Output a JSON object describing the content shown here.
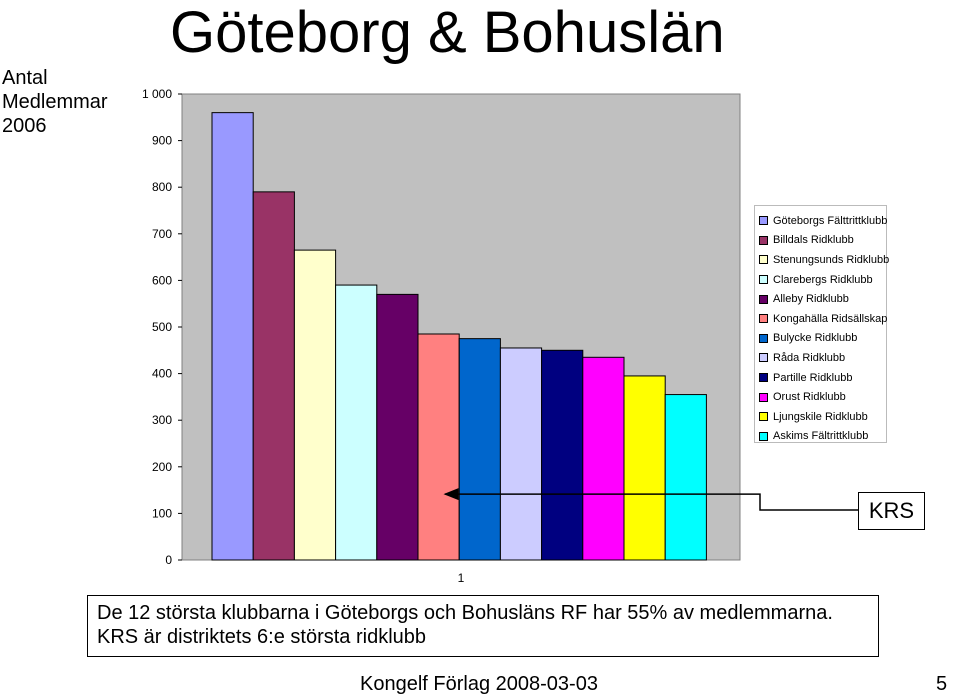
{
  "slide": {
    "title": "Göteborg & Bohuslän",
    "caption_line1": "De 12 största klubbarna i Göteborgs och Bohusläns RF har 55% av medlemmarna.",
    "caption_line2": "KRS är distriktets 6:e största ridklubb",
    "footer": "Kongelf Förlag 2008-03-03",
    "page_number": "5"
  },
  "chart_data": {
    "type": "bar",
    "ylabel_lines": [
      "Antal",
      "Medlemmar",
      "2006"
    ],
    "categories": [
      "1"
    ],
    "yticks": [
      "0",
      "100",
      "200",
      "300",
      "400",
      "500",
      "600",
      "700",
      "800",
      "900",
      "1 000"
    ],
    "ylim": [
      0,
      1000
    ],
    "grid": false,
    "plot_background": "#c0c0c0",
    "legend_position": "right",
    "annotation": {
      "text": "KRS",
      "points_to_value": 150
    },
    "series": [
      {
        "name": "Göteborgs Fälttrittklubb",
        "value": 960,
        "color": "#9999ff"
      },
      {
        "name": "Billdals Ridklubb",
        "value": 790,
        "color": "#993366"
      },
      {
        "name": "Stenungsunds Ridklubb",
        "value": 665,
        "color": "#ffffcc"
      },
      {
        "name": "Clarebergs Ridklubb",
        "value": 590,
        "color": "#ccffff"
      },
      {
        "name": "Alleby Ridklubb",
        "value": 570,
        "color": "#660066"
      },
      {
        "name": "Kongahälla Ridsällskap",
        "value": 485,
        "color": "#ff8080"
      },
      {
        "name": "Bulycke Ridklubb",
        "value": 475,
        "color": "#0066cc"
      },
      {
        "name": "Råda Ridklubb",
        "value": 455,
        "color": "#ccccff"
      },
      {
        "name": "Partille Ridklubb",
        "value": 450,
        "color": "#000080"
      },
      {
        "name": "Orust Ridklubb",
        "value": 435,
        "color": "#ff00ff"
      },
      {
        "name": "Ljungskile Ridklubb",
        "value": 395,
        "color": "#ffff00"
      },
      {
        "name": "Askims Fältrittklubb",
        "value": 355,
        "color": "#00ffff"
      }
    ]
  }
}
